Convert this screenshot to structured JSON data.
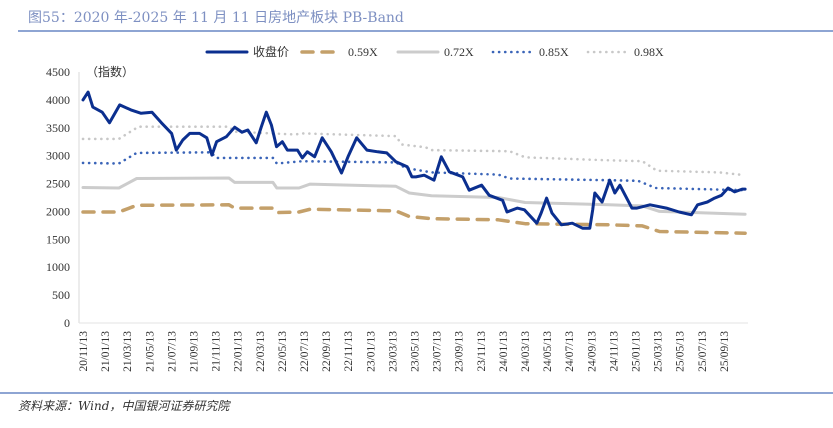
{
  "title": "图55：2020 年-2025 年 11 月 11 日房地产板块 PB-Band",
  "source": "资料来源：Wind，中国银河证券研究院",
  "chart_data": {
    "type": "line",
    "title": "",
    "ylabel": "（指数）",
    "xlabel": "",
    "ylim": [
      0,
      4500
    ],
    "yticks": [
      0,
      500,
      1000,
      1500,
      2000,
      2500,
      3000,
      3500,
      4000,
      4500
    ],
    "xlim": [
      "2020-11-13",
      "2025-11-11"
    ],
    "xtick_labels": [
      "20/11/13",
      "21/01/13",
      "21/03/13",
      "21/05/13",
      "21/07/13",
      "21/09/13",
      "21/11/13",
      "22/01/13",
      "22/03/13",
      "22/05/13",
      "22/07/13",
      "22/09/13",
      "22/11/13",
      "23/01/13",
      "23/03/13",
      "23/05/13",
      "23/07/13",
      "23/09/13",
      "23/11/13",
      "24/01/13",
      "24/03/13",
      "24/05/13",
      "24/07/13",
      "24/09/13",
      "24/11/13",
      "25/01/13",
      "25/03/13",
      "25/05/13",
      "25/07/13",
      "25/09/13"
    ],
    "grid": false,
    "legend_position": "top",
    "series": [
      {
        "name": "收盘价",
        "color": "#0b2f8f",
        "style": "solid",
        "points": [
          [
            "2020-11-13",
            4000
          ],
          [
            "2020-11-27",
            4140
          ],
          [
            "2020-12-10",
            3870
          ],
          [
            "2021-01-05",
            3780
          ],
          [
            "2021-01-25",
            3590
          ],
          [
            "2021-02-22",
            3910
          ],
          [
            "2021-03-25",
            3820
          ],
          [
            "2021-04-22",
            3760
          ],
          [
            "2021-05-22",
            3780
          ],
          [
            "2021-06-17",
            3590
          ],
          [
            "2021-07-15",
            3400
          ],
          [
            "2021-07-28",
            3100
          ],
          [
            "2021-08-15",
            3280
          ],
          [
            "2021-09-03",
            3400
          ],
          [
            "2021-09-30",
            3400
          ],
          [
            "2021-10-20",
            3320
          ],
          [
            "2021-11-03",
            3010
          ],
          [
            "2021-11-16",
            3250
          ],
          [
            "2021-12-13",
            3340
          ],
          [
            "2022-01-05",
            3510
          ],
          [
            "2022-01-25",
            3420
          ],
          [
            "2022-02-10",
            3460
          ],
          [
            "2022-03-05",
            3230
          ],
          [
            "2022-03-19",
            3510
          ],
          [
            "2022-04-02",
            3780
          ],
          [
            "2022-04-16",
            3550
          ],
          [
            "2022-04-30",
            3160
          ],
          [
            "2022-05-16",
            3250
          ],
          [
            "2022-05-30",
            3100
          ],
          [
            "2022-06-27",
            3100
          ],
          [
            "2022-07-10",
            2960
          ],
          [
            "2022-07-24",
            3070
          ],
          [
            "2022-08-13",
            2980
          ],
          [
            "2022-09-03",
            3320
          ],
          [
            "2022-09-28",
            3070
          ],
          [
            "2022-10-26",
            2690
          ],
          [
            "2022-11-13",
            2980
          ],
          [
            "2022-12-07",
            3320
          ],
          [
            "2023-01-04",
            3100
          ],
          [
            "2023-02-03",
            3070
          ],
          [
            "2023-02-28",
            3050
          ],
          [
            "2023-03-25",
            2890
          ],
          [
            "2023-04-25",
            2800
          ],
          [
            "2023-05-08",
            2620
          ],
          [
            "2023-05-19",
            2620
          ],
          [
            "2023-06-11",
            2650
          ],
          [
            "2023-07-08",
            2560
          ],
          [
            "2023-07-28",
            2980
          ],
          [
            "2023-08-19",
            2710
          ],
          [
            "2023-09-25",
            2620
          ],
          [
            "2023-10-13",
            2380
          ],
          [
            "2023-11-16",
            2470
          ],
          [
            "2023-12-07",
            2290
          ],
          [
            "2024-01-13",
            2200
          ],
          [
            "2024-01-25",
            1990
          ],
          [
            "2024-02-22",
            2060
          ],
          [
            "2024-03-13",
            2030
          ],
          [
            "2024-04-16",
            1790
          ],
          [
            "2024-04-28",
            1970
          ],
          [
            "2024-05-13",
            2240
          ],
          [
            "2024-05-28",
            1970
          ],
          [
            "2024-06-23",
            1760
          ],
          [
            "2024-07-23",
            1790
          ],
          [
            "2024-08-20",
            1700
          ],
          [
            "2024-09-09",
            1700
          ],
          [
            "2024-09-17",
            2030
          ],
          [
            "2024-09-23",
            2330
          ],
          [
            "2024-10-13",
            2170
          ],
          [
            "2024-11-03",
            2560
          ],
          [
            "2024-11-17",
            2330
          ],
          [
            "2024-12-01",
            2470
          ],
          [
            "2025-01-03",
            2060
          ],
          [
            "2025-01-17",
            2060
          ],
          [
            "2025-02-22",
            2120
          ],
          [
            "2025-04-08",
            2060
          ],
          [
            "2025-05-13",
            1990
          ],
          [
            "2025-06-16",
            1940
          ],
          [
            "2025-07-03",
            2120
          ],
          [
            "2025-07-30",
            2170
          ],
          [
            "2025-08-19",
            2240
          ],
          [
            "2025-09-07",
            2290
          ],
          [
            "2025-09-25",
            2420
          ],
          [
            "2025-10-13",
            2350
          ],
          [
            "2025-11-03",
            2400
          ],
          [
            "2025-11-11",
            2400
          ]
        ]
      },
      {
        "name": "0.59X",
        "color": "#c4a06a",
        "style": "dashed",
        "points": [
          [
            "2020-11-13",
            1990
          ],
          [
            "2021-02-20",
            1990
          ],
          [
            "2021-04-10",
            2110
          ],
          [
            "2021-12-20",
            2120
          ],
          [
            "2022-01-05",
            2060
          ],
          [
            "2022-04-20",
            2060
          ],
          [
            "2022-05-01",
            1980
          ],
          [
            "2022-07-01",
            1990
          ],
          [
            "2022-08-01",
            2040
          ],
          [
            "2023-03-25",
            2010
          ],
          [
            "2023-05-01",
            1910
          ],
          [
            "2023-07-01",
            1870
          ],
          [
            "2024-01-01",
            1850
          ],
          [
            "2024-03-15",
            1780
          ],
          [
            "2024-11-01",
            1760
          ],
          [
            "2025-02-01",
            1740
          ],
          [
            "2025-03-20",
            1640
          ],
          [
            "2025-11-11",
            1610
          ]
        ]
      },
      {
        "name": "0.72X",
        "color": "#cccccc",
        "style": "solid",
        "points": [
          [
            "2020-11-13",
            2430
          ],
          [
            "2021-02-20",
            2420
          ],
          [
            "2021-04-10",
            2590
          ],
          [
            "2021-12-20",
            2600
          ],
          [
            "2022-01-05",
            2520
          ],
          [
            "2022-04-20",
            2520
          ],
          [
            "2022-05-01",
            2420
          ],
          [
            "2022-07-01",
            2420
          ],
          [
            "2022-08-01",
            2490
          ],
          [
            "2023-03-25",
            2450
          ],
          [
            "2023-05-01",
            2330
          ],
          [
            "2023-07-01",
            2280
          ],
          [
            "2024-01-01",
            2250
          ],
          [
            "2024-03-15",
            2160
          ],
          [
            "2024-11-01",
            2120
          ],
          [
            "2025-02-01",
            2100
          ],
          [
            "2025-03-20",
            2000
          ],
          [
            "2025-11-11",
            1950
          ]
        ]
      },
      {
        "name": "0.85X",
        "color": "#3a64b8",
        "style": "dotted",
        "points": [
          [
            "2020-11-13",
            2870
          ],
          [
            "2021-02-20",
            2860
          ],
          [
            "2021-04-10",
            3050
          ],
          [
            "2021-11-01",
            3060
          ],
          [
            "2021-11-15",
            2960
          ],
          [
            "2022-04-20",
            2960
          ],
          [
            "2022-05-01",
            2860
          ],
          [
            "2022-07-10",
            2900
          ],
          [
            "2023-03-25",
            2880
          ],
          [
            "2023-04-20",
            2780
          ],
          [
            "2023-07-01",
            2700
          ],
          [
            "2024-01-01",
            2660
          ],
          [
            "2024-02-01",
            2590
          ],
          [
            "2024-11-01",
            2560
          ],
          [
            "2025-01-20",
            2550
          ],
          [
            "2025-03-10",
            2420
          ],
          [
            "2025-11-11",
            2380
          ]
        ]
      },
      {
        "name": "0.98X",
        "color": "#c8c8c8",
        "style": "dotted",
        "points": [
          [
            "2020-11-13",
            3300
          ],
          [
            "2021-02-20",
            3300
          ],
          [
            "2021-04-15",
            3520
          ],
          [
            "2021-12-20",
            3520
          ],
          [
            "2022-01-05",
            3430
          ],
          [
            "2022-06-20",
            3380
          ],
          [
            "2022-07-10",
            3400
          ],
          [
            "2023-03-25",
            3350
          ],
          [
            "2023-04-10",
            3200
          ],
          [
            "2023-06-15",
            3150
          ],
          [
            "2023-07-01",
            3100
          ],
          [
            "2024-02-01",
            3080
          ],
          [
            "2024-03-15",
            2970
          ],
          [
            "2024-10-13",
            2920
          ],
          [
            "2025-02-01",
            2900
          ],
          [
            "2025-03-13",
            2730
          ],
          [
            "2025-09-01",
            2700
          ],
          [
            "2025-11-11",
            2650
          ]
        ]
      }
    ]
  }
}
